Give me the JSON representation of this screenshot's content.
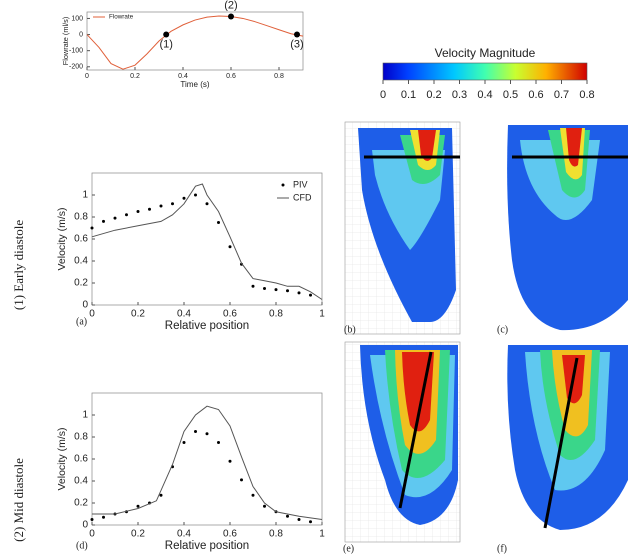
{
  "chart_data": [
    {
      "type": "line",
      "xlabel": "Time (s)",
      "ylabel": "Flowrate (ml/s)",
      "xlim": [
        0,
        0.9
      ],
      "ylim": [
        -220,
        140
      ],
      "xticks": [
        0,
        0.2,
        0.4,
        0.6,
        0.8
      ],
      "yticks": [
        100,
        0,
        -100,
        -200
      ],
      "legend": "top-left",
      "series": [
        {
          "name": "Flowrate",
          "color": "#e0603a",
          "mode": "lines",
          "x": [
            0,
            0.05,
            0.1,
            0.15,
            0.2,
            0.25,
            0.3,
            0.35,
            0.4,
            0.45,
            0.5,
            0.55,
            0.6,
            0.65,
            0.7,
            0.75,
            0.8,
            0.85,
            0.9
          ],
          "values": [
            0,
            -80,
            -180,
            -215,
            -190,
            -120,
            -40,
            20,
            60,
            90,
            108,
            115,
            112,
            100,
            80,
            55,
            30,
            5,
            -10
          ]
        }
      ],
      "markers": {
        "color": "#000",
        "x": [
          0.33,
          0.6,
          0.875
        ],
        "values": [
          0,
          112,
          0
        ],
        "labels": [
          "(1)",
          "(2)",
          "(3)"
        ]
      }
    },
    {
      "type": "line",
      "xlabel": "Relative position",
      "ylabel": "Velocity (m/s)",
      "xlim": [
        0,
        1
      ],
      "ylim": [
        0,
        1.2
      ],
      "xticks": [
        0,
        0.2,
        0.4,
        0.6,
        0.8,
        1
      ],
      "yticks": [
        0,
        0.2,
        0.4,
        0.6,
        0.8,
        1
      ],
      "legend": "top-right",
      "series": [
        {
          "name": "PIV",
          "color": "#000",
          "mode": "markers",
          "x": [
            0,
            0.05,
            0.1,
            0.15,
            0.2,
            0.25,
            0.3,
            0.35,
            0.4,
            0.45,
            0.5,
            0.55,
            0.6,
            0.65,
            0.7,
            0.75,
            0.8,
            0.85,
            0.9,
            0.95
          ],
          "values": [
            0.7,
            0.76,
            0.79,
            0.82,
            0.85,
            0.87,
            0.9,
            0.92,
            0.97,
            1.0,
            0.92,
            0.75,
            0.53,
            0.37,
            0.17,
            0.15,
            0.14,
            0.13,
            0.11,
            0.09
          ]
        },
        {
          "name": "CFD",
          "color": "#555",
          "mode": "lines",
          "x": [
            0,
            0.1,
            0.2,
            0.3,
            0.35,
            0.4,
            0.45,
            0.48,
            0.5,
            0.55,
            0.6,
            0.65,
            0.7,
            0.75,
            0.8,
            0.85,
            0.9,
            0.95,
            1
          ],
          "values": [
            0.62,
            0.68,
            0.72,
            0.76,
            0.82,
            0.92,
            1.08,
            1.1,
            1.0,
            0.85,
            0.62,
            0.38,
            0.24,
            0.22,
            0.2,
            0.17,
            0.17,
            0.12,
            0.05
          ]
        }
      ]
    },
    {
      "type": "line",
      "xlabel": "Relative position",
      "ylabel": "Velocity (m/s)",
      "xlim": [
        0,
        1
      ],
      "ylim": [
        0,
        1.2
      ],
      "xticks": [
        0,
        0.2,
        0.4,
        0.6,
        0.8,
        1
      ],
      "yticks": [
        0,
        0.2,
        0.4,
        0.6,
        0.8,
        1
      ],
      "series": [
        {
          "name": "PIV",
          "color": "#000",
          "mode": "markers",
          "x": [
            0,
            0.05,
            0.1,
            0.15,
            0.2,
            0.25,
            0.3,
            0.35,
            0.4,
            0.45,
            0.5,
            0.55,
            0.6,
            0.65,
            0.7,
            0.75,
            0.8,
            0.85,
            0.9,
            0.95
          ],
          "values": [
            0.05,
            0.07,
            0.1,
            0.12,
            0.17,
            0.2,
            0.27,
            0.53,
            0.75,
            0.85,
            0.83,
            0.75,
            0.58,
            0.41,
            0.27,
            0.17,
            0.12,
            0.08,
            0.05,
            0.03
          ]
        },
        {
          "name": "CFD",
          "color": "#555",
          "mode": "lines",
          "x": [
            0,
            0.1,
            0.2,
            0.28,
            0.35,
            0.4,
            0.45,
            0.5,
            0.55,
            0.6,
            0.65,
            0.7,
            0.75,
            0.8,
            0.9,
            1
          ],
          "values": [
            0.1,
            0.1,
            0.15,
            0.22,
            0.55,
            0.85,
            1.0,
            1.08,
            1.05,
            0.9,
            0.62,
            0.35,
            0.2,
            0.12,
            0.08,
            0.05
          ]
        }
      ]
    }
  ],
  "colorbar": {
    "title": "Velocity Magnitude",
    "lim": [
      0,
      0.8
    ],
    "ticks": [
      0,
      0.1,
      0.2,
      0.3,
      0.4,
      0.5,
      0.6,
      0.7,
      0.8
    ]
  },
  "row_labels": [
    "(1) Early diastole",
    "(2) Mid diastole"
  ],
  "panel_labels": [
    "(a)",
    "(b)",
    "(c)",
    "(d)",
    "(e)",
    "(f)"
  ]
}
